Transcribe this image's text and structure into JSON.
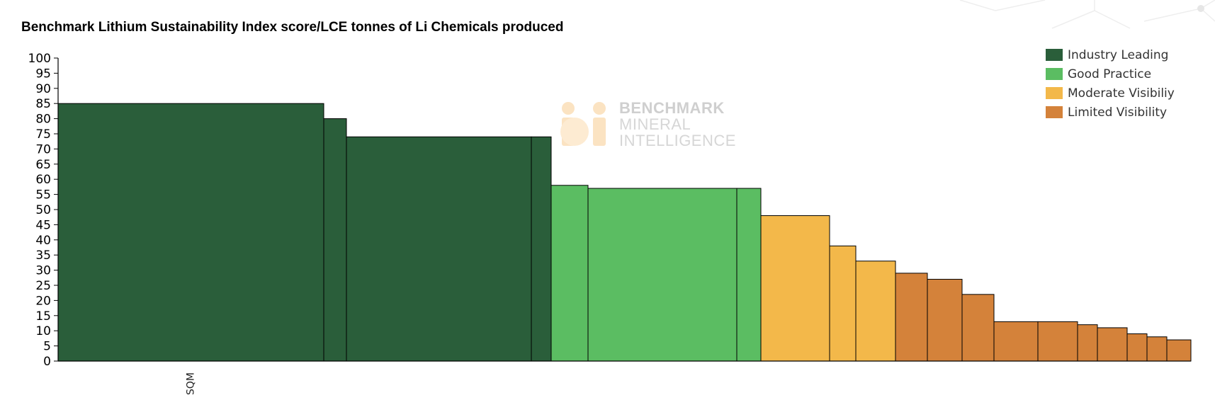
{
  "chart_data": {
    "type": "bar",
    "title": "Benchmark Lithium Sustainability Index score/LCE tonnes of Li Chemicals produced",
    "xlabel": "",
    "ylabel": "",
    "ylim": [
      0,
      100
    ],
    "yticks": [
      0,
      5,
      10,
      15,
      20,
      25,
      30,
      35,
      40,
      45,
      50,
      55,
      60,
      65,
      70,
      75,
      80,
      85,
      90,
      95,
      100
    ],
    "variable_width": true,
    "grid": false,
    "legend_position": "top-right",
    "legend": [
      {
        "name": "Industry Leading",
        "color": "#2a5e3a"
      },
      {
        "name": "Good Practice",
        "color": "#5bbd62"
      },
      {
        "name": "Moderate Visibiliy",
        "color": "#f3b84a"
      },
      {
        "name": "Limited Visibility",
        "color": "#d4823a"
      }
    ],
    "bars": [
      {
        "label": "SQM",
        "value": 85,
        "width": 375,
        "tier": 0
      },
      {
        "label": "",
        "value": 80,
        "width": 32,
        "tier": 0
      },
      {
        "label": "",
        "value": 74,
        "width": 261,
        "tier": 0
      },
      {
        "label": "",
        "value": 74,
        "width": 28,
        "tier": 0
      },
      {
        "label": "",
        "value": 58,
        "width": 52,
        "tier": 1
      },
      {
        "label": "",
        "value": 57,
        "width": 210,
        "tier": 1
      },
      {
        "label": "",
        "value": 57,
        "width": 34,
        "tier": 1
      },
      {
        "label": "",
        "value": 48,
        "width": 97,
        "tier": 2
      },
      {
        "label": "",
        "value": 38,
        "width": 37,
        "tier": 2
      },
      {
        "label": "",
        "value": 33,
        "width": 56,
        "tier": 2
      },
      {
        "label": "",
        "value": 29,
        "width": 45,
        "tier": 3
      },
      {
        "label": "",
        "value": 27,
        "width": 49,
        "tier": 3
      },
      {
        "label": "",
        "value": 22,
        "width": 45,
        "tier": 3
      },
      {
        "label": "",
        "value": 13,
        "width": 62,
        "tier": 3
      },
      {
        "label": "",
        "value": 13,
        "width": 56,
        "tier": 3
      },
      {
        "label": "",
        "value": 12,
        "width": 28,
        "tier": 3
      },
      {
        "label": "",
        "value": 11,
        "width": 42,
        "tier": 3
      },
      {
        "label": "",
        "value": 9,
        "width": 28,
        "tier": 3
      },
      {
        "label": "",
        "value": 8,
        "width": 28,
        "tier": 3
      },
      {
        "label": "",
        "value": 7,
        "width": 34,
        "tier": 3
      }
    ]
  },
  "watermark": {
    "line1": "BENCHMARK",
    "line2": "MINERAL",
    "line3": "INTELLIGENCE"
  }
}
